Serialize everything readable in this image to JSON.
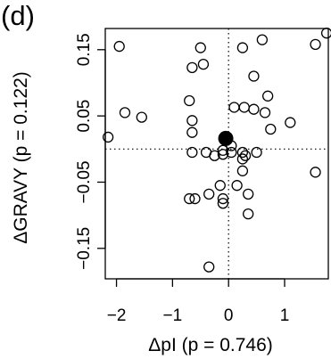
{
  "chart_data": {
    "type": "scatter",
    "panel_label": "(d)",
    "xlabel": "ΔpI (p = 0.746)",
    "ylabel": "ΔGRAVY (p = 0.122)",
    "xlim": [
      -2.2,
      1.78
    ],
    "ylim": [
      -0.196,
      0.182
    ],
    "x_ticks": [
      -2,
      -1,
      0,
      1
    ],
    "x_tick_labels": [
      "−2",
      "−1",
      "0",
      "1"
    ],
    "y_ticks": [
      -0.15,
      -0.05,
      0.05,
      0.15
    ],
    "y_tick_labels": [
      "−0.15",
      "−0.05",
      "0.05",
      "0.15"
    ],
    "reference_lines": {
      "x": 0,
      "y": 0,
      "style": "dotted"
    },
    "grid": false,
    "legend": "none",
    "highlight": {
      "x": -0.05,
      "y": 0.016,
      "style": "filled"
    },
    "points": [
      {
        "x": -1.95,
        "y": 0.155
      },
      {
        "x": -1.85,
        "y": 0.055
      },
      {
        "x": -2.15,
        "y": 0.018
      },
      {
        "x": -1.55,
        "y": 0.048
      },
      {
        "x": -0.5,
        "y": 0.153
      },
      {
        "x": -0.45,
        "y": 0.128
      },
      {
        "x": -0.65,
        "y": 0.123
      },
      {
        "x": -0.7,
        "y": 0.073
      },
      {
        "x": -0.65,
        "y": 0.043
      },
      {
        "x": -0.65,
        "y": 0.025
      },
      {
        "x": 0.25,
        "y": 0.153
      },
      {
        "x": 0.6,
        "y": 0.165
      },
      {
        "x": 1.55,
        "y": 0.158
      },
      {
        "x": 1.75,
        "y": 0.175
      },
      {
        "x": 0.45,
        "y": 0.11
      },
      {
        "x": 0.1,
        "y": 0.063
      },
      {
        "x": 0.28,
        "y": 0.063
      },
      {
        "x": 0.45,
        "y": 0.06
      },
      {
        "x": 0.7,
        "y": 0.08
      },
      {
        "x": 0.65,
        "y": 0.055
      },
      {
        "x": 0.75,
        "y": 0.03
      },
      {
        "x": 1.1,
        "y": 0.04
      },
      {
        "x": 0.05,
        "y": 0.005
      },
      {
        "x": -0.1,
        "y": -0.002
      },
      {
        "x": -0.65,
        "y": -0.005
      },
      {
        "x": -0.4,
        "y": -0.005
      },
      {
        "x": -0.25,
        "y": -0.01
      },
      {
        "x": -0.1,
        "y": -0.008
      },
      {
        "x": 0.05,
        "y": -0.005
      },
      {
        "x": 0.25,
        "y": -0.005
      },
      {
        "x": 0.3,
        "y": -0.01
      },
      {
        "x": 0.25,
        "y": -0.015
      },
      {
        "x": 0.5,
        "y": -0.005
      },
      {
        "x": 0.25,
        "y": -0.033
      },
      {
        "x": 0.15,
        "y": -0.055
      },
      {
        "x": -0.15,
        "y": -0.055
      },
      {
        "x": -0.35,
        "y": -0.068
      },
      {
        "x": -0.6,
        "y": -0.075
      },
      {
        "x": -0.7,
        "y": -0.075
      },
      {
        "x": -0.1,
        "y": -0.075
      },
      {
        "x": -0.1,
        "y": -0.082
      },
      {
        "x": 0.35,
        "y": -0.068
      },
      {
        "x": 0.35,
        "y": -0.098
      },
      {
        "x": 1.55,
        "y": -0.035
      },
      {
        "x": -0.35,
        "y": -0.178
      }
    ]
  }
}
